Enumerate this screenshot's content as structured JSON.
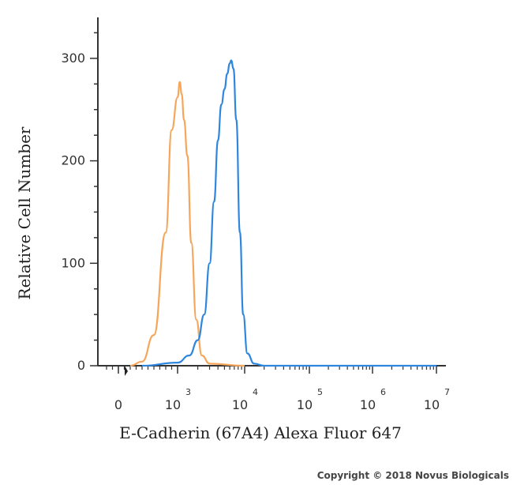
{
  "chart_data": {
    "type": "line",
    "title": "",
    "xlabel": "E-Cadherin (67A4) Alexa Fluor 647",
    "ylabel": "Relative Cell Number",
    "x_scale": "log",
    "x_ticks": [
      {
        "base": "0",
        "exp": ""
      },
      {
        "base": "10",
        "exp": "3"
      },
      {
        "base": "10",
        "exp": "4"
      },
      {
        "base": "10",
        "exp": "5"
      },
      {
        "base": "10",
        "exp": "6"
      },
      {
        "base": "10",
        "exp": "7"
      }
    ],
    "y_ticks": [
      "0",
      "100",
      "200",
      "300"
    ],
    "ylim": [
      0,
      340
    ],
    "grid": false,
    "legend": "none",
    "series": [
      {
        "color": "#F5A65B",
        "points": [
          [
            200,
            0
          ],
          [
            400,
            4
          ],
          [
            600,
            30
          ],
          [
            800,
            130
          ],
          [
            900,
            230
          ],
          [
            1000,
            262
          ],
          [
            1080,
            277
          ],
          [
            1150,
            265
          ],
          [
            1250,
            240
          ],
          [
            1400,
            205
          ],
          [
            1600,
            120
          ],
          [
            1900,
            45
          ],
          [
            2300,
            10
          ],
          [
            3000,
            2
          ],
          [
            10000,
            0
          ]
        ]
      },
      {
        "color": "#2E86DE",
        "points": [
          [
            400,
            0
          ],
          [
            1000,
            3
          ],
          [
            1500,
            10
          ],
          [
            2000,
            25
          ],
          [
            2500,
            50
          ],
          [
            3000,
            100
          ],
          [
            3500,
            160
          ],
          [
            4000,
            220
          ],
          [
            4500,
            255
          ],
          [
            5000,
            270
          ],
          [
            5500,
            285
          ],
          [
            6000,
            295
          ],
          [
            6300,
            298
          ],
          [
            6800,
            290
          ],
          [
            7500,
            240
          ],
          [
            8500,
            130
          ],
          [
            9500,
            50
          ],
          [
            11000,
            12
          ],
          [
            14000,
            2
          ],
          [
            20000,
            0
          ],
          [
            10000000,
            0
          ]
        ]
      }
    ],
    "annotations": [
      "Copyright © 2018 Novus Biologicals"
    ]
  }
}
